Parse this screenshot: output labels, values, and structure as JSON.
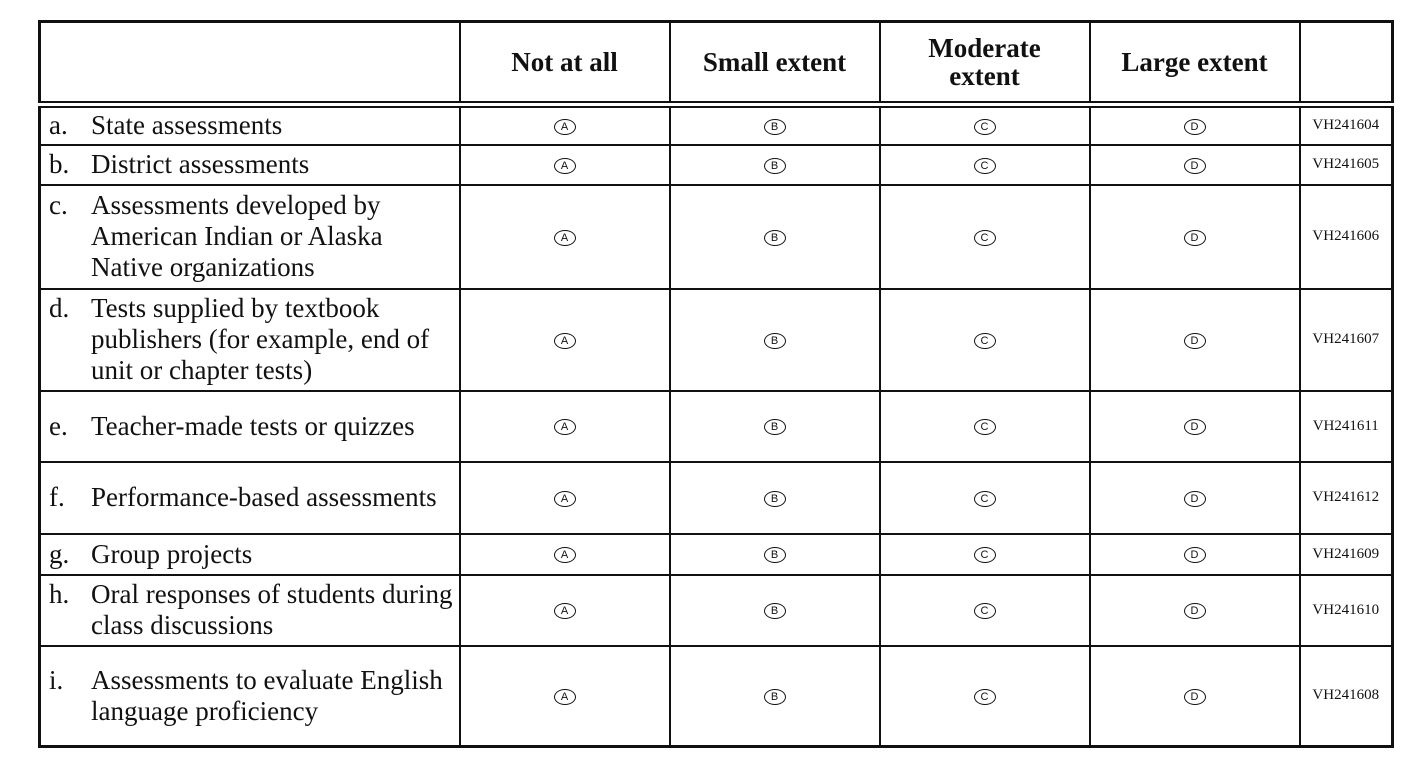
{
  "table": {
    "columns": [
      "Not at all",
      "Small extent",
      "Moderate extent",
      "Large extent"
    ],
    "options": [
      "A",
      "B",
      "C",
      "D"
    ],
    "rows": [
      {
        "letter": "a.",
        "label": "State assessments",
        "code": "VH241604"
      },
      {
        "letter": "b.",
        "label": "District assessments",
        "code": "VH241605"
      },
      {
        "letter": "c.",
        "label": "Assessments developed by American Indian or Alaska Native organizations",
        "code": "VH241606"
      },
      {
        "letter": "d.",
        "label": "Tests supplied by textbook publishers (for example, end of unit or chapter tests)",
        "code": "VH241607"
      },
      {
        "letter": "e.",
        "label": "Teacher-made tests or quizzes",
        "code": "VH241611"
      },
      {
        "letter": "f.",
        "label": "Performance-based assessments",
        "code": "VH241612"
      },
      {
        "letter": "g.",
        "label": "Group projects",
        "code": "VH241609"
      },
      {
        "letter": "h.",
        "label": "Oral responses of students during class discussions",
        "code": "VH241610"
      },
      {
        "letter": "i.",
        "label": "Assessments to evaluate English language proficiency",
        "code": "VH241608"
      }
    ]
  }
}
